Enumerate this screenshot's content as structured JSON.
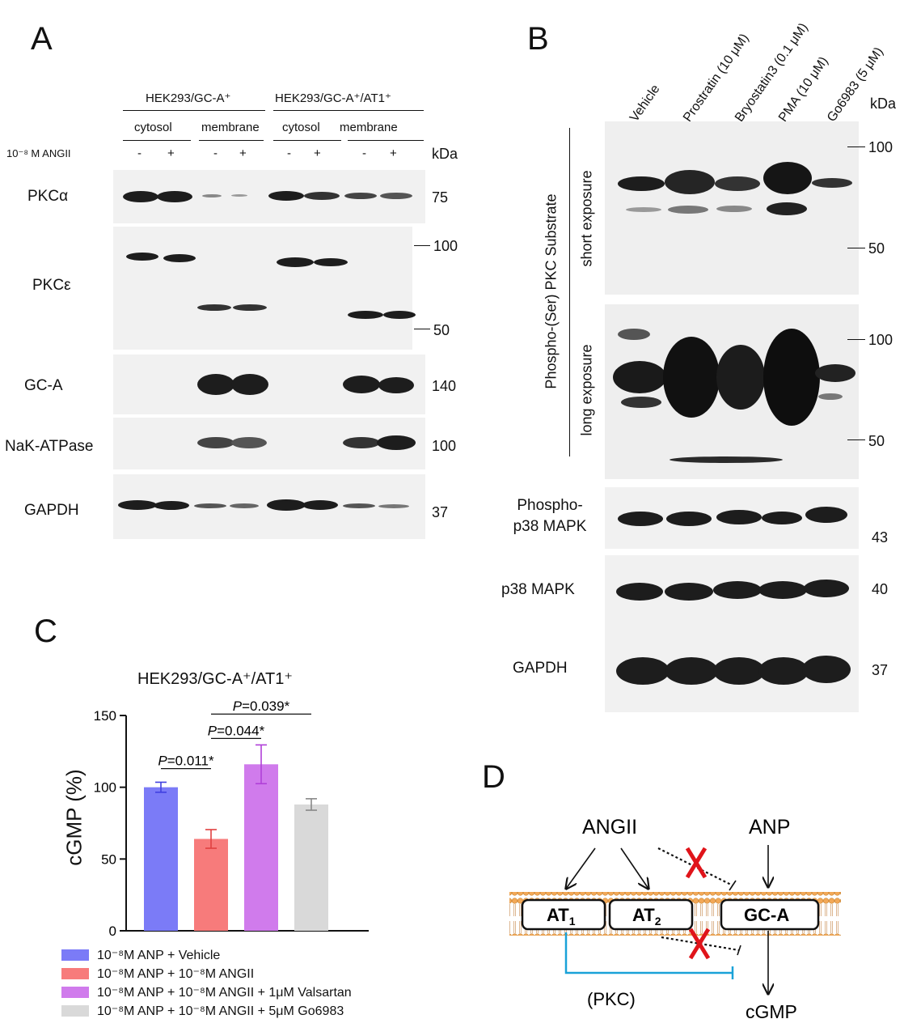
{
  "panelA": {
    "label": "A",
    "group1": "HEK293/GC-A⁺",
    "group2": "HEK293/GC-A⁺/AT1⁺",
    "fractions": [
      "cytosol",
      "membrane",
      "cytosol",
      "membrane"
    ],
    "treatment": "10⁻⁸ M ANGII",
    "signs": [
      "-",
      "+",
      "-",
      "+",
      "-",
      "+",
      "-",
      "+"
    ],
    "kda": "kDa",
    "rows": [
      {
        "name": "PKCα",
        "mw": "75"
      },
      {
        "name": "PKCε",
        "mw_top": "100",
        "mw_bottom": "50"
      },
      {
        "name": "GC-A",
        "mw": "140"
      },
      {
        "name": "NaK-ATPase",
        "mw": "100"
      },
      {
        "name": "GAPDH",
        "mw": "37"
      }
    ]
  },
  "panelB": {
    "label": "B",
    "lanes": [
      "Vehicle",
      "Prostratin (10 μM)",
      "Bryostatin3 (0.1 μM)",
      "PMA (10 μM)",
      "Go6983 (5 μM)"
    ],
    "kda": "kDa",
    "substrate_label": "Phospho-(Ser) PKC Substrate",
    "short_exposure": "short exposure",
    "long_exposure": "long exposure",
    "markers_short": [
      "100",
      "50"
    ],
    "markers_long": [
      "100",
      "50"
    ],
    "rows": [
      {
        "name1": "Phospho-",
        "name2": "p38 MAPK",
        "mw": "43"
      },
      {
        "name1": "p38 MAPK",
        "name2": "",
        "mw": "40"
      },
      {
        "name1": "GAPDH",
        "name2": "",
        "mw": "37"
      }
    ]
  },
  "panelC": {
    "label": "C",
    "title": "HEK293/GC-A⁺/AT1⁺",
    "ylabel": "cGMP (%)",
    "stats": [
      "P=0.011*",
      "P=0.044*",
      "P=0.039*"
    ],
    "legend": [
      "10⁻⁸M ANP + Vehicle",
      "10⁻⁸M ANP + 10⁻⁸M ANGII",
      "10⁻⁸M ANP + 10⁻⁸M ANGII + 1μM Valsartan",
      "10⁻⁸M ANP + 10⁻⁸M ANGII + 5μM Go6983"
    ]
  },
  "chart_data": {
    "type": "bar",
    "title": "HEK293/GC-A⁺/AT1⁺",
    "ylabel": "cGMP (%)",
    "ylim": [
      0,
      150
    ],
    "yticks": [
      0,
      50,
      100,
      150
    ],
    "categories": [
      "10⁻⁸M ANP + Vehicle",
      "10⁻⁸M ANP + 10⁻⁸M ANGII",
      "10⁻⁸M ANP + 10⁻⁸M ANGII + 1μM Valsartan",
      "10⁻⁸M ANP + 10⁻⁸M ANGII + 5μM Go6983"
    ],
    "values": [
      100,
      64,
      116,
      88
    ],
    "errors": [
      3.5,
      6.5,
      13.5,
      4
    ],
    "colors": [
      "#7b7bf7",
      "#f77b7b",
      "#d07bec",
      "#d9d9d9"
    ],
    "error_colors": [
      "#4040e0",
      "#e04040",
      "#b040d8",
      "#888888"
    ]
  },
  "panelD": {
    "label": "D",
    "angii": "ANGII",
    "anp": "ANP",
    "at1": "AT",
    "at1_sub": "1",
    "at2": "AT",
    "at2_sub": "2",
    "gca": "GC-A",
    "pkc": "(PKC)",
    "cgmp": "cGMP"
  }
}
